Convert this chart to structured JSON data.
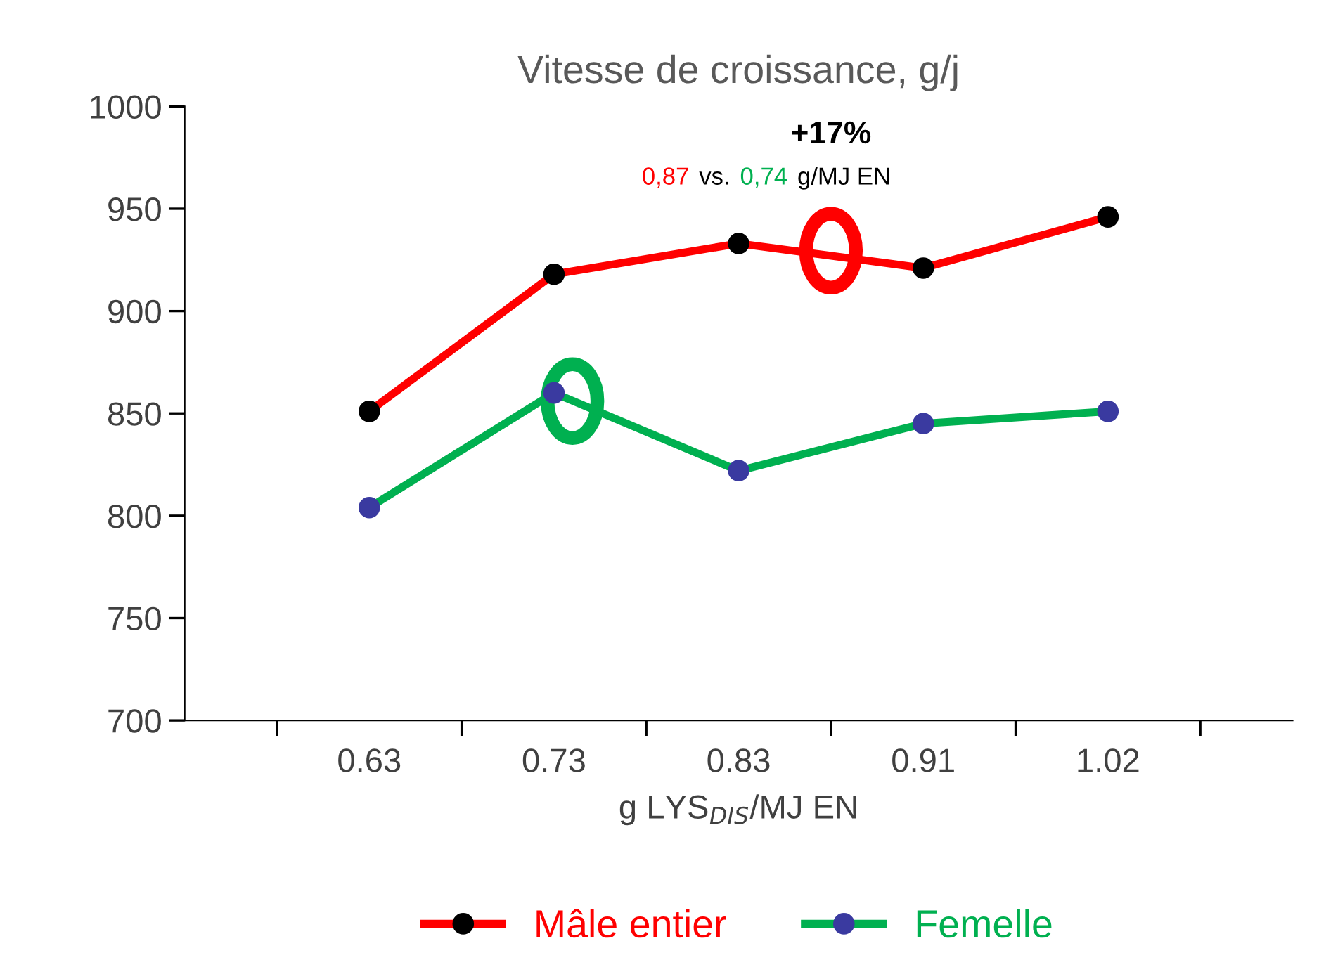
{
  "chart_data": {
    "type": "line",
    "title": "Vitesse de croissance, g/j",
    "xlabel": "g LYS$_{DIS}$/MJ EN",
    "categories": [
      "0.63",
      "0.73",
      "0.83",
      "0.91",
      "1.02"
    ],
    "series": [
      {
        "name": "Mâle entier",
        "color": "#ff0000",
        "values": [
          851,
          918,
          933,
          921,
          946
        ]
      },
      {
        "name": "Femelle",
        "color": "#00b050",
        "values": [
          804,
          860,
          822,
          845,
          851
        ]
      }
    ],
    "ylim": [
      700,
      1000
    ],
    "yticks": [
      700,
      750,
      800,
      850,
      900,
      950,
      1000
    ],
    "grid": false,
    "legend": "bottom",
    "marker": "circle",
    "line_style": "solid",
    "annotations": [
      "+17%",
      "0,87",
      "vs.",
      "0,74",
      "g/MJ EN"
    ]
  }
}
